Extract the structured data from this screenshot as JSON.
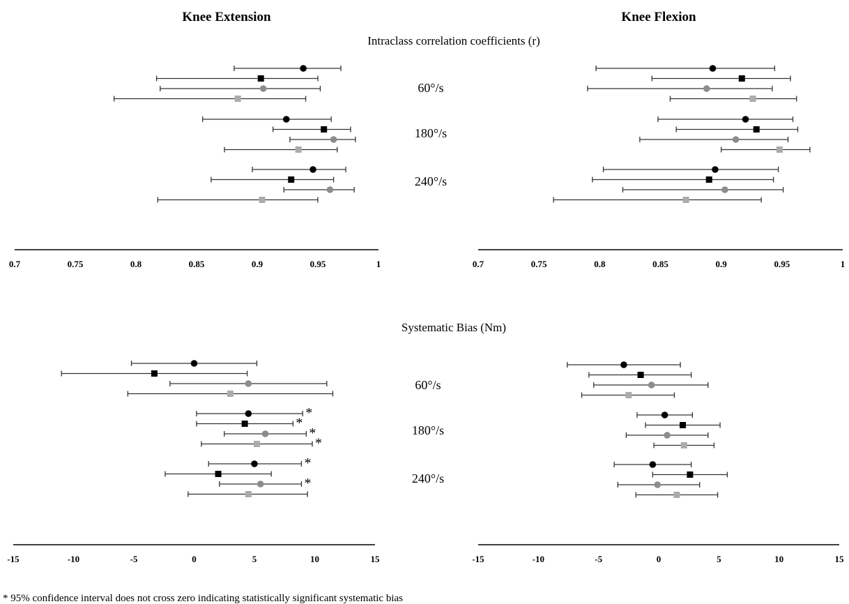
{
  "headers": {
    "left": "Knee Extension",
    "right": "Knee Flexion",
    "icc_title": "Intraclass correlation coefficients (r)",
    "bias_title": "Systematic Bias (Nm)"
  },
  "speed_labels": [
    "60°/s",
    "180°/s",
    "240°/s"
  ],
  "footnote": "* 95% confidence interval does not cross zero indicating statistically significant systematic bias",
  "asterisk": "*",
  "colors": {
    "black": "#000000",
    "gray": "#8c8c8c",
    "lightgray": "#ababab",
    "axis": "#000000"
  },
  "chart_data": [
    {
      "type": "scatter",
      "panel": "icc-extension",
      "xlim": [
        0.7,
        1
      ],
      "ticks": [
        "0.7",
        "0.75",
        "0.8",
        "0.85",
        "0.9",
        "0.95",
        "1"
      ],
      "tick_values": [
        0.7,
        0.75,
        0.8,
        0.85,
        0.9,
        0.95,
        1
      ],
      "groups": [
        [
          {
            "marker": "circle",
            "color": "black",
            "value": 0.938,
            "lo": 0.881,
            "hi": 0.969
          },
          {
            "marker": "square",
            "color": "black",
            "value": 0.903,
            "lo": 0.817,
            "hi": 0.95
          },
          {
            "marker": "circle",
            "color": "gray",
            "value": 0.905,
            "lo": 0.82,
            "hi": 0.952
          },
          {
            "marker": "square",
            "color": "lightgray",
            "value": 0.884,
            "lo": 0.782,
            "hi": 0.94
          }
        ],
        [
          {
            "marker": "circle",
            "color": "black",
            "value": 0.924,
            "lo": 0.855,
            "hi": 0.961
          },
          {
            "marker": "square",
            "color": "black",
            "value": 0.955,
            "lo": 0.913,
            "hi": 0.977
          },
          {
            "marker": "circle",
            "color": "gray",
            "value": 0.963,
            "lo": 0.927,
            "hi": 0.981
          },
          {
            "marker": "square",
            "color": "lightgray",
            "value": 0.934,
            "lo": 0.873,
            "hi": 0.966
          }
        ],
        [
          {
            "marker": "circle",
            "color": "black",
            "value": 0.946,
            "lo": 0.896,
            "hi": 0.973
          },
          {
            "marker": "square",
            "color": "black",
            "value": 0.928,
            "lo": 0.862,
            "hi": 0.963
          },
          {
            "marker": "circle",
            "color": "gray",
            "value": 0.96,
            "lo": 0.922,
            "hi": 0.98
          },
          {
            "marker": "square",
            "color": "lightgray",
            "value": 0.904,
            "lo": 0.818,
            "hi": 0.95
          }
        ]
      ]
    },
    {
      "type": "scatter",
      "panel": "icc-flexion",
      "xlim": [
        0.7,
        1
      ],
      "ticks": [
        "0.7",
        "0.75",
        "0.8",
        "0.85",
        "0.9",
        "0.95",
        "1"
      ],
      "tick_values": [
        0.7,
        0.75,
        0.8,
        0.85,
        0.9,
        0.95,
        1
      ],
      "groups": [
        [
          {
            "marker": "circle",
            "color": "black",
            "value": 0.893,
            "lo": 0.797,
            "hi": 0.944
          },
          {
            "marker": "square",
            "color": "black",
            "value": 0.917,
            "lo": 0.843,
            "hi": 0.957
          },
          {
            "marker": "circle",
            "color": "gray",
            "value": 0.888,
            "lo": 0.79,
            "hi": 0.942
          },
          {
            "marker": "square",
            "color": "lightgray",
            "value": 0.926,
            "lo": 0.858,
            "hi": 0.962
          }
        ],
        [
          {
            "marker": "circle",
            "color": "black",
            "value": 0.92,
            "lo": 0.848,
            "hi": 0.959
          },
          {
            "marker": "square",
            "color": "black",
            "value": 0.929,
            "lo": 0.863,
            "hi": 0.963
          },
          {
            "marker": "circle",
            "color": "gray",
            "value": 0.912,
            "lo": 0.833,
            "hi": 0.955
          },
          {
            "marker": "square",
            "color": "lightgray",
            "value": 0.948,
            "lo": 0.9,
            "hi": 0.973
          }
        ],
        [
          {
            "marker": "circle",
            "color": "black",
            "value": 0.895,
            "lo": 0.803,
            "hi": 0.947
          },
          {
            "marker": "square",
            "color": "black",
            "value": 0.89,
            "lo": 0.794,
            "hi": 0.943
          },
          {
            "marker": "circle",
            "color": "gray",
            "value": 0.903,
            "lo": 0.819,
            "hi": 0.951
          },
          {
            "marker": "square",
            "color": "lightgray",
            "value": 0.871,
            "lo": 0.762,
            "hi": 0.933
          }
        ]
      ]
    },
    {
      "type": "scatter",
      "panel": "bias-extension",
      "xlim": [
        -15,
        15
      ],
      "ticks": [
        "-15",
        "-10",
        "-5",
        "0",
        "5",
        "10",
        "15"
      ],
      "tick_values": [
        -15,
        -10,
        -5,
        0,
        5,
        10,
        15
      ],
      "groups": [
        [
          {
            "marker": "circle",
            "color": "black",
            "value": 0.0,
            "lo": -5.2,
            "hi": 5.2
          },
          {
            "marker": "square",
            "color": "black",
            "value": -3.3,
            "lo": -11.0,
            "hi": 4.4
          },
          {
            "marker": "circle",
            "color": "gray",
            "value": 4.5,
            "lo": -2.0,
            "hi": 11.0
          },
          {
            "marker": "square",
            "color": "lightgray",
            "value": 3.0,
            "lo": -5.5,
            "hi": 11.5
          }
        ],
        [
          {
            "marker": "circle",
            "color": "black",
            "value": 4.5,
            "lo": 0.2,
            "hi": 9.0,
            "significant": true
          },
          {
            "marker": "square",
            "color": "black",
            "value": 4.2,
            "lo": 0.2,
            "hi": 8.2,
            "significant": true
          },
          {
            "marker": "circle",
            "color": "gray",
            "value": 5.9,
            "lo": 2.5,
            "hi": 9.3,
            "significant": true
          },
          {
            "marker": "square",
            "color": "lightgray",
            "value": 5.2,
            "lo": 0.6,
            "hi": 9.8,
            "significant": true
          }
        ],
        [
          {
            "marker": "circle",
            "color": "black",
            "value": 5.0,
            "lo": 1.2,
            "hi": 8.9,
            "significant": true
          },
          {
            "marker": "square",
            "color": "black",
            "value": 2.0,
            "lo": -2.4,
            "hi": 6.4
          },
          {
            "marker": "circle",
            "color": "gray",
            "value": 5.5,
            "lo": 2.1,
            "hi": 8.9,
            "significant": true
          },
          {
            "marker": "square",
            "color": "lightgray",
            "value": 4.5,
            "lo": -0.5,
            "hi": 9.4
          }
        ]
      ]
    },
    {
      "type": "scatter",
      "panel": "bias-flexion",
      "xlim": [
        -15,
        15
      ],
      "ticks": [
        "-15",
        "-10",
        "-5",
        "0",
        "5",
        "10",
        "15"
      ],
      "tick_values": [
        -15,
        -10,
        -5,
        0,
        5,
        10,
        15
      ],
      "groups": [
        [
          {
            "marker": "circle",
            "color": "black",
            "value": -2.9,
            "lo": -7.6,
            "hi": 1.8
          },
          {
            "marker": "square",
            "color": "black",
            "value": -1.5,
            "lo": -5.8,
            "hi": 2.7
          },
          {
            "marker": "circle",
            "color": "gray",
            "value": -0.6,
            "lo": -5.4,
            "hi": 4.1
          },
          {
            "marker": "square",
            "color": "lightgray",
            "value": -2.5,
            "lo": -6.4,
            "hi": 1.3
          }
        ],
        [
          {
            "marker": "circle",
            "color": "black",
            "value": 0.5,
            "lo": -1.8,
            "hi": 2.8
          },
          {
            "marker": "square",
            "color": "black",
            "value": 2.0,
            "lo": -1.1,
            "hi": 5.1
          },
          {
            "marker": "circle",
            "color": "gray",
            "value": 0.7,
            "lo": -2.7,
            "hi": 4.1
          },
          {
            "marker": "square",
            "color": "lightgray",
            "value": 2.1,
            "lo": -0.4,
            "hi": 4.6
          }
        ],
        [
          {
            "marker": "circle",
            "color": "black",
            "value": -0.5,
            "lo": -3.7,
            "hi": 2.7
          },
          {
            "marker": "square",
            "color": "black",
            "value": 2.6,
            "lo": -0.5,
            "hi": 5.7
          },
          {
            "marker": "circle",
            "color": "gray",
            "value": -0.1,
            "lo": -3.4,
            "hi": 3.4
          },
          {
            "marker": "square",
            "color": "lightgray",
            "value": 1.5,
            "lo": -1.9,
            "hi": 4.9
          }
        ]
      ]
    }
  ]
}
